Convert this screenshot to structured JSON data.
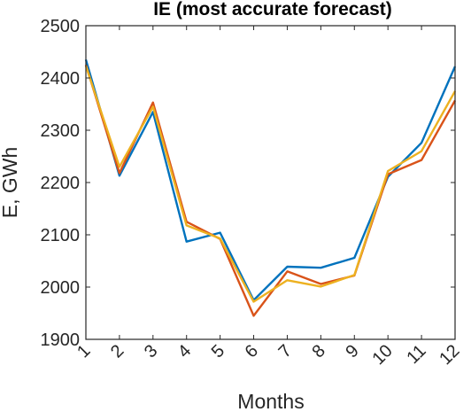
{
  "chart_data": {
    "type": "line",
    "title": "IE (most accurate forecast)",
    "xlabel": "Months",
    "ylabel": "E, GWh",
    "x": [
      1,
      2,
      3,
      4,
      5,
      6,
      7,
      8,
      9,
      10,
      11,
      12
    ],
    "xticks": [
      "1",
      "2",
      "3",
      "4",
      "5",
      "6",
      "7",
      "8",
      "9",
      "10",
      "11",
      "12"
    ],
    "yticks": [
      "1900",
      "2000",
      "2100",
      "2200",
      "2300",
      "2400",
      "2500"
    ],
    "ylim": [
      1900,
      2500
    ],
    "xlim": [
      1,
      12
    ],
    "grid": false,
    "series": [
      {
        "color": "#0072BD",
        "values": [
          2435,
          2213,
          2335,
          2087,
          2104,
          1975,
          2039,
          2037,
          2056,
          2211,
          2276,
          2422
        ]
      },
      {
        "color": "#D95319",
        "values": [
          2425,
          2218,
          2353,
          2125,
          2092,
          1945,
          2030,
          2006,
          2022,
          2216,
          2243,
          2357
        ]
      },
      {
        "color": "#EDB120",
        "values": [
          2423,
          2230,
          2345,
          2118,
          2093,
          1972,
          2013,
          2001,
          2023,
          2222,
          2260,
          2375
        ]
      }
    ]
  }
}
